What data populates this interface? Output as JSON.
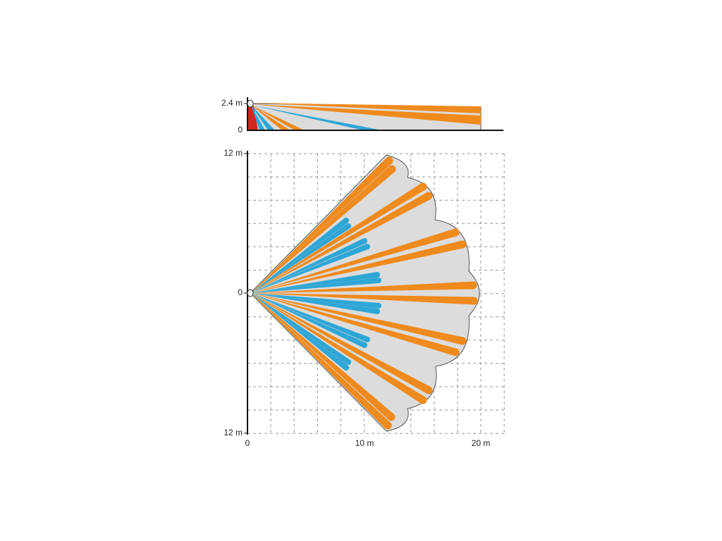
{
  "side_view": {
    "y_labels": [
      "2.4 m",
      "0"
    ]
  },
  "plan_view": {
    "y_labels": [
      "12 m",
      "0",
      "12 m"
    ],
    "x_labels": [
      "0",
      "10 m",
      "20 m"
    ]
  }
}
